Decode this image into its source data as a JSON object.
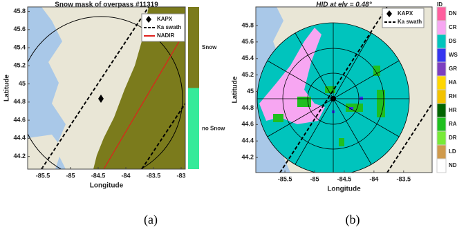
{
  "panels": [
    {
      "label": "(a)",
      "title": "Snow mask of overpass #11319",
      "xlabel": "Longitude",
      "ylabel": "Latitude",
      "xlim": [
        -85.775,
        -82.925
      ],
      "ylim": [
        44.06,
        45.85
      ],
      "xticks": [
        -85.5,
        -85,
        -84.5,
        -84,
        -83.5,
        -83
      ],
      "yticks": [
        44.2,
        44.4,
        44.6,
        44.8,
        45,
        45.2,
        45.4,
        45.6,
        45.8
      ],
      "legend": [
        {
          "name": "KAPX",
          "color": "#000000"
        },
        {
          "name": "Ka swath",
          "color": "#000000"
        },
        {
          "name": "NADIR",
          "color": "#e0201b"
        }
      ],
      "colorbar": {
        "labels": [
          "Snow",
          "no Snow"
        ],
        "colors": [
          "#7b7b1c",
          "#35ea9a"
        ]
      }
    },
    {
      "label": "(b)",
      "title": "HID at elv = 0.48°",
      "xlabel": "Longitude",
      "ylabel": "Latitude",
      "xlim": [
        -85.99,
        -83.02
      ],
      "ylim": [
        44.017,
        46.025
      ],
      "xticks": [
        -85.5,
        -85,
        -84.5,
        -84,
        -83.5
      ],
      "yticks": [
        44.2,
        44.4,
        44.6,
        44.8,
        45,
        45.2,
        45.4,
        45.6,
        45.8
      ],
      "legend": [
        {
          "name": "KAPX",
          "color": "#000000"
        },
        {
          "name": "Ka swath",
          "color": "#000000"
        }
      ],
      "colorbar": {
        "title": "ID",
        "labels": [
          "DN",
          "CR",
          "DS",
          "WS",
          "GR",
          "HA",
          "RH",
          "HR",
          "RA",
          "DR",
          "LD",
          "ND"
        ],
        "colors": [
          "#ff5f9e",
          "#f7a6f2",
          "#00c4bd",
          "#3535f0",
          "#7c3fc0",
          "#ffd600",
          "#f2c200",
          "#006400",
          "#1fbf1f",
          "#77ea38",
          "#cf9a4c",
          "#ffffff"
        ]
      }
    }
  ]
}
